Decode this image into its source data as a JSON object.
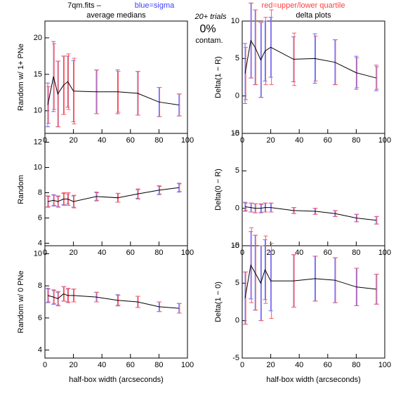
{
  "header": {
    "file": "7qm.fits  –",
    "sigma_note": "blue=sigma",
    "quartile_note": "red=upper/lower quartile",
    "trials": "20+ trials",
    "contam_value": "0%",
    "contam_label": "contam."
  },
  "chart_data": [
    {
      "type": "line",
      "title": "average medians",
      "ylabel": "Random w/ 1+ PNe",
      "x": [
        2,
        6,
        9,
        13,
        16,
        20,
        36,
        51,
        65,
        80,
        94
      ],
      "values": [
        10.8,
        14.7,
        12.3,
        13.5,
        14.0,
        12.7,
        12.6,
        12.6,
        12.4,
        11.2,
        10.8
      ],
      "sigma": [
        3,
        4.8,
        4.5,
        4,
        3.5,
        4.2,
        3,
        3,
        3,
        2,
        1.5
      ],
      "quartile_err": [
        2.5,
        4.5,
        4.5,
        4,
        3.8,
        4.5,
        3,
        2.8,
        3,
        2,
        1.5
      ],
      "xlim": [
        0,
        100
      ],
      "ylim": [
        6.9,
        22.3
      ],
      "xticks": [
        0,
        20,
        40,
        60,
        80,
        100
      ],
      "yticks": [
        10,
        15,
        20
      ],
      "color": "#000000",
      "sigma_color": "#6a6aff",
      "quartile_color": "#ff5a5a"
    },
    {
      "type": "line",
      "title": "delta plots",
      "ylabel": "Delta(1 − R)",
      "x": [
        2,
        6,
        9,
        13,
        16,
        20,
        36,
        51,
        65,
        80,
        94
      ],
      "values": [
        3.0,
        7.4,
        6.5,
        4.8,
        6.0,
        6.5,
        4.9,
        5.0,
        4.5,
        3.1,
        2.4
      ],
      "sigma": [
        4,
        5,
        5,
        5,
        4,
        4,
        3,
        3.3,
        3,
        2.2,
        1.7
      ],
      "quartile_err": [
        3.5,
        5,
        5,
        5,
        4.5,
        5,
        3.5,
        3,
        3,
        2,
        1.5
      ],
      "xlim": [
        0,
        100
      ],
      "ylim": [
        -5,
        10
      ],
      "xticks": [
        0,
        20,
        40,
        60,
        80,
        100
      ],
      "yticks": [
        -5,
        0,
        5,
        10
      ],
      "color": "#000000",
      "sigma_color": "#6a6aff",
      "quartile_color": "#ff5a5a"
    },
    {
      "type": "line",
      "ylabel": "Random",
      "x": [
        2,
        6,
        9,
        13,
        16,
        20,
        36,
        51,
        65,
        80,
        94
      ],
      "values": [
        7.3,
        7.4,
        7.3,
        7.5,
        7.5,
        7.3,
        7.7,
        7.6,
        7.9,
        8.2,
        8.4
      ],
      "sigma": [
        0.45,
        0.45,
        0.4,
        0.45,
        0.4,
        0.45,
        0.35,
        0.35,
        0.35,
        0.35,
        0.35
      ],
      "quartile_err": [
        0.4,
        0.4,
        0.45,
        0.5,
        0.5,
        0.5,
        0.3,
        0.35,
        0.4,
        0.3,
        0.3
      ],
      "xlim": [
        0,
        100
      ],
      "ylim": [
        3.8,
        12.7
      ],
      "xticks": [
        0,
        20,
        40,
        60,
        80,
        100
      ],
      "yticks": [
        4,
        6,
        8,
        10,
        12
      ],
      "color": "#000000",
      "sigma_color": "#6a6aff",
      "quartile_color": "#ff5a5a"
    },
    {
      "type": "line",
      "ylabel": "Delta(0 − R)",
      "x": [
        2,
        6,
        9,
        13,
        16,
        20,
        36,
        51,
        65,
        80,
        94
      ],
      "values": [
        0.2,
        0.1,
        0.0,
        0.0,
        0.1,
        0.1,
        -0.3,
        -0.4,
        -0.7,
        -1.3,
        -1.6
      ],
      "sigma": [
        0.6,
        0.6,
        0.6,
        0.6,
        0.6,
        0.6,
        0.4,
        0.4,
        0.4,
        0.5,
        0.5
      ],
      "quartile_err": [
        0.5,
        0.6,
        0.6,
        0.5,
        0.6,
        0.6,
        0.4,
        0.4,
        0.4,
        0.5,
        0.5
      ],
      "xlim": [
        0,
        100
      ],
      "ylim": [
        -5,
        10
      ],
      "xticks": [
        0,
        20,
        40,
        60,
        80,
        100
      ],
      "yticks": [
        -5,
        0,
        5,
        10
      ],
      "color": "#000000",
      "sigma_color": "#6a6aff",
      "quartile_color": "#ff5a5a"
    },
    {
      "type": "line",
      "ylabel": "Random w/ 0 PNe",
      "xlabel": "half-box width (arcseconds)",
      "x": [
        2,
        6,
        9,
        13,
        16,
        20,
        36,
        51,
        65,
        80,
        94
      ],
      "values": [
        7.4,
        7.3,
        7.2,
        7.5,
        7.4,
        7.4,
        7.3,
        7.1,
        7.0,
        6.7,
        6.6
      ],
      "sigma": [
        0.45,
        0.45,
        0.4,
        0.45,
        0.4,
        0.4,
        0.3,
        0.35,
        0.35,
        0.3,
        0.3
      ],
      "quartile_err": [
        0.4,
        0.4,
        0.45,
        0.45,
        0.45,
        0.4,
        0.3,
        0.3,
        0.35,
        0.3,
        0.3
      ],
      "xlim": [
        0,
        100
      ],
      "ylim": [
        3.5,
        10.5
      ],
      "xticks": [
        0,
        20,
        40,
        60,
        80,
        100
      ],
      "yticks": [
        4,
        6,
        8,
        10
      ],
      "color": "#000000",
      "sigma_color": "#6a6aff",
      "quartile_color": "#ff5a5a"
    },
    {
      "type": "line",
      "ylabel": "Delta(1 − 0)",
      "xlabel": "half-box width (arcseconds)",
      "x": [
        2,
        6,
        9,
        13,
        16,
        20,
        36,
        51,
        65,
        80,
        94
      ],
      "values": [
        3.0,
        7.4,
        6.4,
        5.0,
        6.8,
        5.3,
        5.3,
        5.6,
        5.4,
        4.5,
        4.2
      ],
      "sigma": [
        3.5,
        4.5,
        5,
        5,
        4,
        4,
        3.5,
        3,
        3,
        2.5,
        2
      ],
      "quartile_err": [
        3.5,
        5,
        5,
        5,
        4.5,
        5,
        3.5,
        3,
        3,
        2.5,
        2
      ],
      "xlim": [
        0,
        100
      ],
      "ylim": [
        -5,
        10
      ],
      "xticks": [
        0,
        20,
        40,
        60,
        80,
        100
      ],
      "yticks": [
        -5,
        0,
        5,
        10
      ],
      "color": "#000000",
      "sigma_color": "#6a6aff",
      "quartile_color": "#ff5a5a"
    }
  ]
}
